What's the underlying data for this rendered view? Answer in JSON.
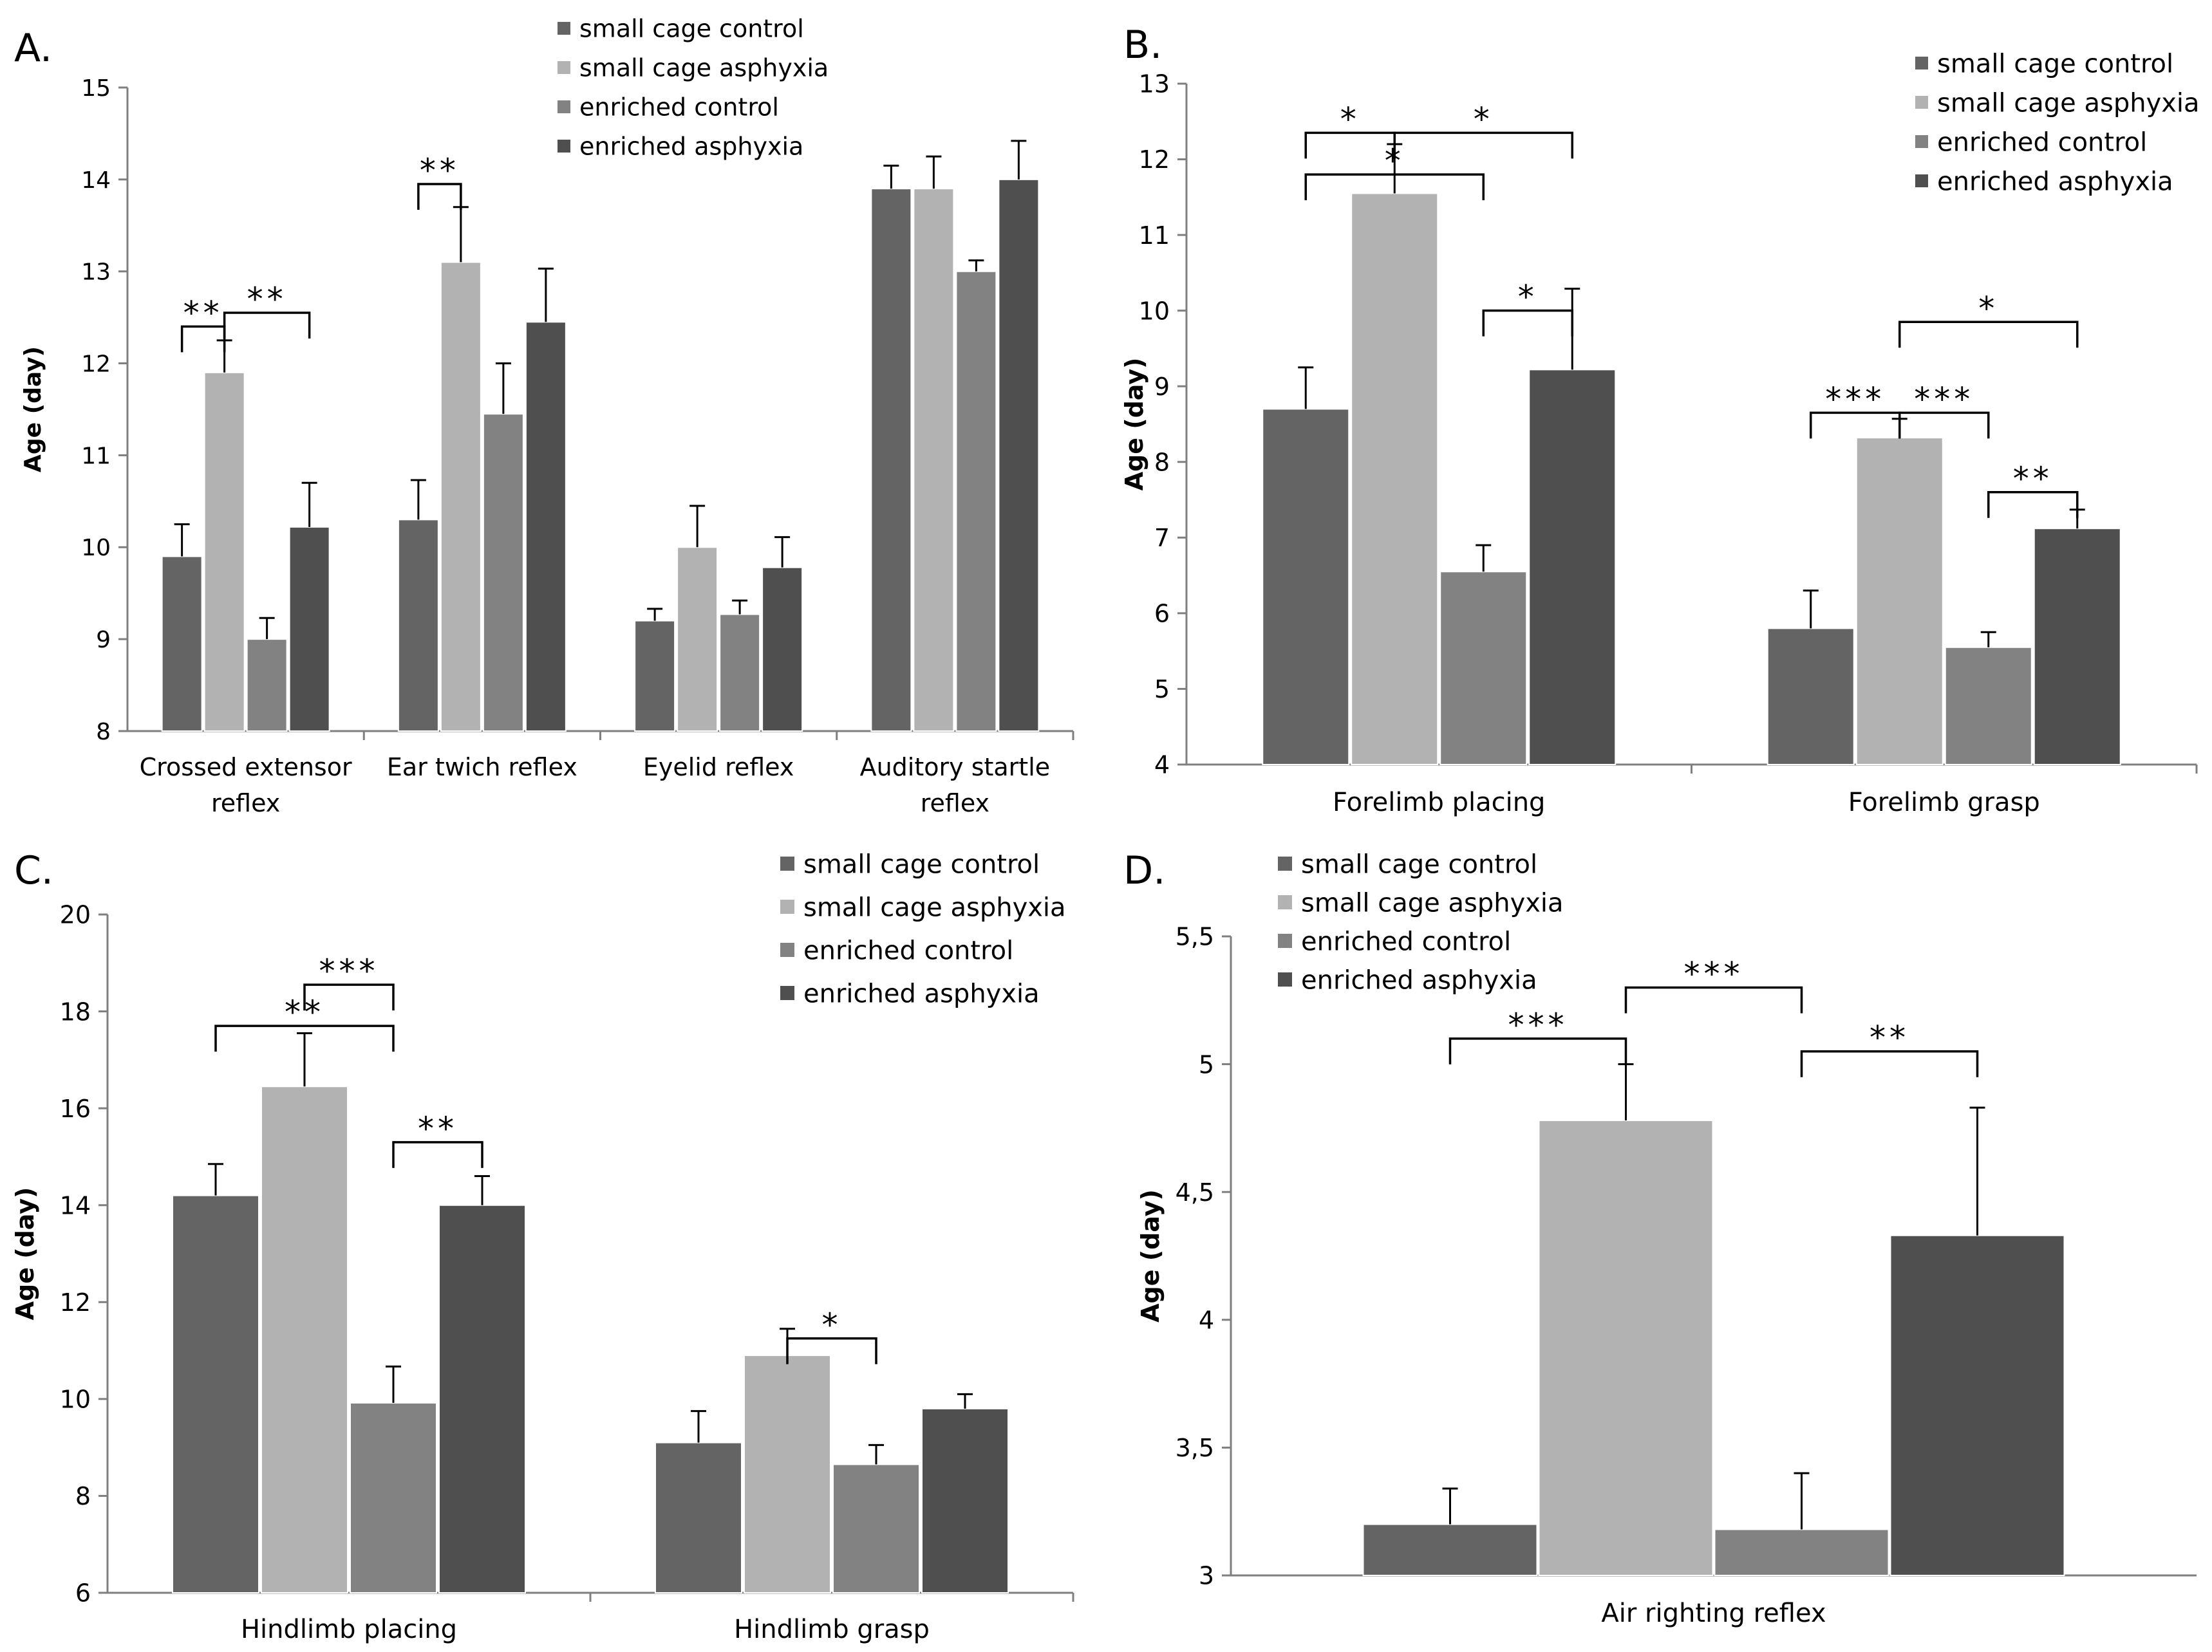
{
  "colors": {
    "small_cage_control": "#646464",
    "small_cage_asphyxia": "#b2b2b2",
    "enriched_control": "#828282",
    "enriched_asphyxia": "#4f4f4f"
  },
  "chart_data": [
    {
      "panel": "A.",
      "type": "bar",
      "ylabel": "Age (day)",
      "ylim": [
        8,
        15
      ],
      "yticks": [
        "8",
        "9",
        "10",
        "11",
        "12",
        "13",
        "14",
        "15"
      ],
      "categories": [
        [
          "Crossed extensor",
          "reflex"
        ],
        [
          "Ear twich reflex"
        ],
        [
          "Eyelid reflex"
        ],
        [
          "Auditory startle",
          "reflex"
        ]
      ],
      "series": [
        {
          "name": "small cage control",
          "values": [
            9.9,
            10.3,
            9.2,
            13.9
          ],
          "errors": [
            0.35,
            0.43,
            0.13,
            0.25
          ]
        },
        {
          "name": "small cage asphyxia",
          "values": [
            11.9,
            13.1,
            10.0,
            13.9
          ],
          "errors": [
            0.35,
            0.6,
            0.45,
            0.35
          ]
        },
        {
          "name": "enriched control",
          "values": [
            9.0,
            11.45,
            9.27,
            13.0
          ],
          "errors": [
            0.23,
            0.55,
            0.15,
            0.12
          ]
        },
        {
          "name": "enriched asphyxia",
          "values": [
            10.22,
            12.45,
            9.78,
            14.0
          ],
          "errors": [
            0.48,
            0.58,
            0.33,
            0.42
          ]
        }
      ],
      "significance": [
        {
          "label": "**",
          "from": [
            0,
            0
          ],
          "to": [
            0,
            1
          ],
          "y": 12.4
        },
        {
          "label": "**",
          "from": [
            0,
            1
          ],
          "to": [
            0,
            3
          ],
          "y": 12.55
        },
        {
          "label": "**",
          "from": [
            1,
            0
          ],
          "to": [
            1,
            1
          ],
          "y": 13.95
        }
      ]
    },
    {
      "panel": "B.",
      "type": "bar",
      "ylabel": "Age (day)",
      "ylim": [
        4,
        13
      ],
      "yticks": [
        "4",
        "5",
        "6",
        "7",
        "8",
        "9",
        "10",
        "11",
        "12",
        "13"
      ],
      "categories": [
        [
          "Forelimb placing"
        ],
        [
          "Forelimb grasp"
        ]
      ],
      "series": [
        {
          "name": "small cage control",
          "values": [
            8.7,
            5.8
          ],
          "errors": [
            0.55,
            0.5
          ]
        },
        {
          "name": "small cage asphyxia",
          "values": [
            11.55,
            8.32
          ],
          "errors": [
            0.65,
            0.25
          ]
        },
        {
          "name": "enriched control",
          "values": [
            6.55,
            5.55
          ],
          "errors": [
            0.35,
            0.2
          ]
        },
        {
          "name": "enriched asphyxia",
          "values": [
            9.22,
            7.12
          ],
          "errors": [
            1.07,
            0.25
          ]
        }
      ],
      "significance": [
        {
          "label": "*",
          "from": [
            0,
            0
          ],
          "to": [
            0,
            1
          ],
          "y": 12.35
        },
        {
          "label": "*",
          "from": [
            0,
            1
          ],
          "to": [
            0,
            3
          ],
          "y": 12.35
        },
        {
          "label": "*",
          "from": [
            0,
            0
          ],
          "to": [
            0,
            2
          ],
          "y": 11.8
        },
        {
          "label": "*",
          "from": [
            0,
            2
          ],
          "to": [
            0,
            3
          ],
          "y": 10.0
        },
        {
          "label": "*",
          "from": [
            1,
            1
          ],
          "to": [
            1,
            3
          ],
          "y": 9.85
        },
        {
          "label": "***",
          "from": [
            1,
            0
          ],
          "to": [
            1,
            1
          ],
          "y": 8.65
        },
        {
          "label": "***",
          "from": [
            1,
            1
          ],
          "to": [
            1,
            2
          ],
          "y": 8.65
        },
        {
          "label": "**",
          "from": [
            1,
            2
          ],
          "to": [
            1,
            3
          ],
          "y": 7.6
        }
      ]
    },
    {
      "panel": "C.",
      "type": "bar",
      "ylabel": "Age (day)",
      "ylim": [
        6,
        20
      ],
      "yticks": [
        "6",
        "8",
        "10",
        "12",
        "14",
        "16",
        "18",
        "20"
      ],
      "categories": [
        [
          "Hindlimb placing"
        ],
        [
          "Hindlimb grasp"
        ]
      ],
      "series": [
        {
          "name": "small cage control",
          "values": [
            14.2,
            9.1
          ],
          "errors": [
            0.65,
            0.65
          ]
        },
        {
          "name": "small cage asphyxia",
          "values": [
            16.45,
            10.9
          ],
          "errors": [
            1.1,
            0.55
          ]
        },
        {
          "name": "enriched control",
          "values": [
            9.92,
            8.65
          ],
          "errors": [
            0.75,
            0.4
          ]
        },
        {
          "name": "enriched asphyxia",
          "values": [
            14.0,
            9.8
          ],
          "errors": [
            0.6,
            0.3
          ]
        }
      ],
      "significance": [
        {
          "label": "***",
          "from": [
            0,
            1
          ],
          "to": [
            0,
            2
          ],
          "y": 18.55
        },
        {
          "label": "**",
          "from": [
            0,
            0
          ],
          "to": [
            0,
            2
          ],
          "y": 17.7
        },
        {
          "label": "**",
          "from": [
            0,
            2
          ],
          "to": [
            0,
            3
          ],
          "y": 15.3
        },
        {
          "label": "*",
          "from": [
            1,
            1
          ],
          "to": [
            1,
            2
          ],
          "y": 11.25
        }
      ]
    },
    {
      "panel": "D.",
      "type": "bar",
      "ylabel": "Age (day)",
      "ylim": [
        3,
        5.5
      ],
      "yticks": [
        "3",
        "3,5",
        "4",
        "4,5",
        "5",
        "5,5"
      ],
      "categories": [
        [
          "Air righting reflex"
        ]
      ],
      "series": [
        {
          "name": "small cage control",
          "values": [
            3.2
          ],
          "errors": [
            0.14
          ]
        },
        {
          "name": "small cage asphyxia",
          "values": [
            4.78
          ],
          "errors": [
            0.22
          ]
        },
        {
          "name": "enriched control",
          "values": [
            3.18
          ],
          "errors": [
            0.22
          ]
        },
        {
          "name": "enriched asphyxia",
          "values": [
            4.33
          ],
          "errors": [
            0.5
          ]
        }
      ],
      "significance": [
        {
          "label": "***",
          "from": [
            0,
            0
          ],
          "to": [
            0,
            1
          ],
          "y": 5.1
        },
        {
          "label": "***",
          "from": [
            0,
            1
          ],
          "to": [
            0,
            2
          ],
          "y": 5.3
        },
        {
          "label": "**",
          "from": [
            0,
            2
          ],
          "to": [
            0,
            3
          ],
          "y": 5.05
        }
      ]
    }
  ]
}
